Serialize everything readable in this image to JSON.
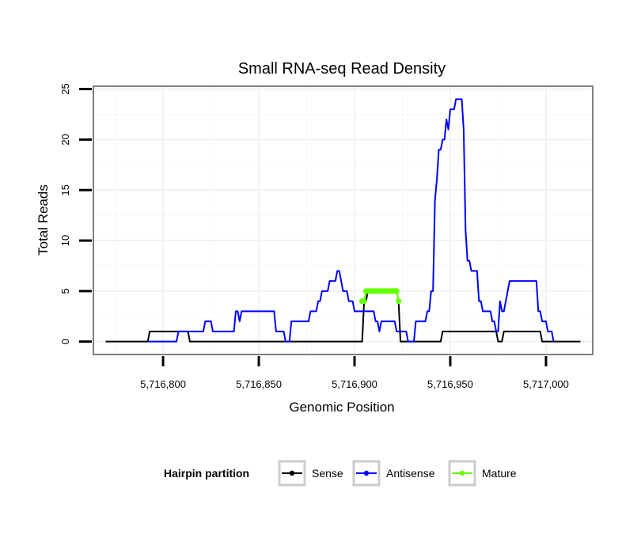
{
  "chart_data": {
    "type": "line",
    "title": "Small RNA-seq Read Density",
    "xlabel": "Genomic Position",
    "ylabel": "Total Reads",
    "xlim": [
      5716764,
      5717024
    ],
    "ylim": [
      -1.2,
      25.2
    ],
    "x_ticks": [
      5716800,
      5716850,
      5716900,
      5716950,
      5717000
    ],
    "x_tick_labels": [
      "5,716,800",
      "5,716,850",
      "5,716,900",
      "5,716,950",
      "5,717,000"
    ],
    "y_ticks": [
      0,
      5,
      10,
      15,
      20,
      25
    ],
    "y_tick_labels": [
      "0",
      "5",
      "10",
      "15",
      "20",
      "25"
    ],
    "grid": true,
    "legend": {
      "title": "Hairpin partition",
      "position": "bottom",
      "entries": [
        {
          "name": "Sense",
          "color": "#000000"
        },
        {
          "name": "Antisense",
          "color": "#0000ff"
        },
        {
          "name": "Mature",
          "color": "#66ff00"
        }
      ]
    },
    "series": [
      {
        "name": "Sense",
        "color": "#000000",
        "markers": false,
        "points": [
          [
            5716770,
            0
          ],
          [
            5716792,
            0
          ],
          [
            5716793,
            1
          ],
          [
            5716805,
            1
          ],
          [
            5716813,
            1
          ],
          [
            5716814,
            0
          ],
          [
            5716904,
            0
          ],
          [
            5716905,
            4
          ],
          [
            5716906,
            4
          ],
          [
            5716907,
            5
          ],
          [
            5716922,
            5
          ],
          [
            5716923,
            4
          ],
          [
            5716924,
            0
          ],
          [
            5716940,
            0
          ],
          [
            5716945,
            0
          ],
          [
            5716946,
            1
          ],
          [
            5716965,
            1
          ],
          [
            5716974,
            1
          ],
          [
            5716975,
            0
          ],
          [
            5716977,
            0
          ],
          [
            5716978,
            1
          ],
          [
            5716990,
            1
          ],
          [
            5716997,
            1
          ],
          [
            5716998,
            0
          ],
          [
            5717018,
            0
          ]
        ]
      },
      {
        "name": "Antisense",
        "color": "#0000ff",
        "markers": false,
        "points": [
          [
            5716792,
            0
          ],
          [
            5716807,
            0
          ],
          [
            5716808,
            1
          ],
          [
            5716816,
            1
          ],
          [
            5716821,
            1
          ],
          [
            5716822,
            2
          ],
          [
            5716825,
            2
          ],
          [
            5716826,
            1
          ],
          [
            5716837,
            1
          ],
          [
            5716838,
            3
          ],
          [
            5716839,
            3
          ],
          [
            5716840,
            2
          ],
          [
            5716841,
            3
          ],
          [
            5716847,
            3
          ],
          [
            5716858,
            3
          ],
          [
            5716859,
            1
          ],
          [
            5716863,
            1
          ],
          [
            5716864,
            0
          ],
          [
            5716866,
            0
          ],
          [
            5716867,
            2
          ],
          [
            5716876,
            2
          ],
          [
            5716877,
            3
          ],
          [
            5716880,
            3
          ],
          [
            5716881,
            4
          ],
          [
            5716882,
            4
          ],
          [
            5716883,
            5
          ],
          [
            5716886,
            5
          ],
          [
            5716887,
            6
          ],
          [
            5716890,
            6
          ],
          [
            5716891,
            7
          ],
          [
            5716892,
            7
          ],
          [
            5716893,
            6
          ],
          [
            5716894,
            5
          ],
          [
            5716896,
            5
          ],
          [
            5716897,
            4
          ],
          [
            5716899,
            4
          ],
          [
            5716900,
            3
          ],
          [
            5716903,
            3
          ],
          [
            5716904,
            3
          ],
          [
            5716906,
            3
          ],
          [
            5716910,
            3
          ],
          [
            5716911,
            2
          ],
          [
            5716912,
            2
          ],
          [
            5716913,
            1
          ],
          [
            5716914,
            2
          ],
          [
            5716921,
            2
          ],
          [
            5716922,
            1
          ],
          [
            5716927,
            1
          ],
          [
            5716928,
            0
          ],
          [
            5716931,
            0
          ],
          [
            5716932,
            2
          ],
          [
            5716937,
            2
          ],
          [
            5716938,
            3
          ],
          [
            5716939,
            3
          ],
          [
            5716940,
            5
          ],
          [
            5716941,
            5
          ],
          [
            5716942,
            14
          ],
          [
            5716943,
            16
          ],
          [
            5716944,
            19
          ],
          [
            5716945,
            19
          ],
          [
            5716946,
            20
          ],
          [
            5716947,
            20
          ],
          [
            5716948,
            22
          ],
          [
            5716949,
            21
          ],
          [
            5716950,
            23
          ],
          [
            5716952,
            23
          ],
          [
            5716953,
            24
          ],
          [
            5716956,
            24
          ],
          [
            5716957,
            21
          ],
          [
            5716958,
            11
          ],
          [
            5716959,
            8
          ],
          [
            5716960,
            8
          ],
          [
            5716961,
            7
          ],
          [
            5716964,
            7
          ],
          [
            5716965,
            4
          ],
          [
            5716966,
            4
          ],
          [
            5716967,
            3
          ],
          [
            5716970,
            3
          ],
          [
            5716971,
            3
          ],
          [
            5716972,
            2
          ],
          [
            5716973,
            2
          ],
          [
            5716974,
            1
          ],
          [
            5716975,
            1
          ],
          [
            5716976,
            4
          ],
          [
            5716977,
            3
          ],
          [
            5716978,
            3
          ],
          [
            5716979,
            4
          ],
          [
            5716980,
            5
          ],
          [
            5716981,
            6
          ],
          [
            5716988,
            6
          ],
          [
            5716995,
            6
          ],
          [
            5716996,
            3
          ],
          [
            5716997,
            3
          ],
          [
            5716998,
            2
          ],
          [
            5717000,
            2
          ],
          [
            5717001,
            1
          ],
          [
            5717003,
            1
          ],
          [
            5717004,
            0
          ]
        ]
      },
      {
        "name": "Mature",
        "color": "#66ff00",
        "markers": true,
        "points": [
          [
            5716904,
            4
          ],
          [
            5716905,
            4
          ],
          [
            5716906,
            5
          ],
          [
            5716907,
            5
          ],
          [
            5716908,
            5
          ],
          [
            5716909,
            5
          ],
          [
            5716910,
            5
          ],
          [
            5716911,
            5
          ],
          [
            5716912,
            5
          ],
          [
            5716913,
            5
          ],
          [
            5716914,
            5
          ],
          [
            5716915,
            5
          ],
          [
            5716916,
            5
          ],
          [
            5716917,
            5
          ],
          [
            5716918,
            5
          ],
          [
            5716919,
            5
          ],
          [
            5716920,
            5
          ],
          [
            5716921,
            5
          ],
          [
            5716922,
            5
          ],
          [
            5716923,
            4
          ]
        ]
      }
    ]
  }
}
